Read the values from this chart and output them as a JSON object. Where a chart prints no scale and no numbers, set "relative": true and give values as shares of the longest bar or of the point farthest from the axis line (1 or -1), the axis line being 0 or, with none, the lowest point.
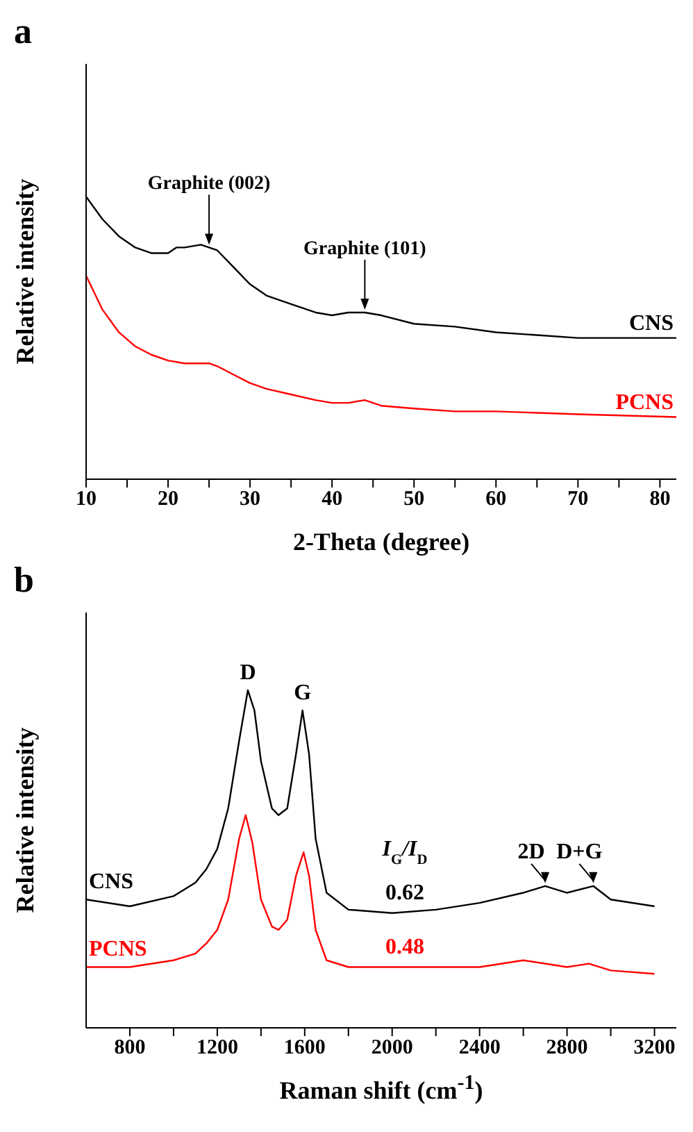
{
  "chart_data": [
    {
      "type": "line",
      "title": "a",
      "xlabel": "2-Theta (degree)",
      "ylabel": "Relative intensity",
      "relative": true,
      "tick_labels": "x",
      "xlim": [
        10,
        82
      ],
      "xticks": [
        10,
        {
          "value": 15,
          "label": null
        },
        20,
        {
          "value": 25,
          "label": null
        },
        30,
        {
          "value": 35,
          "label": null
        },
        40,
        {
          "value": 45,
          "label": null
        },
        50,
        {
          "value": 55,
          "label": null
        },
        60,
        {
          "value": 65,
          "label": null
        },
        70,
        {
          "value": 75,
          "label": null
        },
        80
      ],
      "marker": "none",
      "line_style": "solid",
      "series": [
        {
          "name": "CNS",
          "color": "#000000",
          "x": [
            10,
            12,
            14,
            16,
            18,
            20,
            21,
            22,
            24,
            25,
            26,
            28,
            30,
            32,
            35,
            38,
            40,
            42,
            44,
            46,
            50,
            55,
            60,
            65,
            70,
            75,
            80,
            82
          ],
          "values": [
            1,
            0.92,
            0.86,
            0.82,
            0.8,
            0.8,
            0.82,
            0.82,
            0.83,
            0.82,
            0.81,
            0.75,
            0.69,
            0.65,
            0.62,
            0.59,
            0.58,
            0.59,
            0.59,
            0.58,
            0.55,
            0.54,
            0.52,
            0.51,
            0.5,
            0.5,
            0.5,
            0.5
          ]
        },
        {
          "name": "PCNS",
          "color": "#ff0000",
          "x": [
            10,
            12,
            14,
            16,
            18,
            20,
            22,
            24,
            25,
            26,
            28,
            30,
            32,
            35,
            38,
            40,
            42,
            44,
            46,
            50,
            55,
            60,
            70,
            82
          ],
          "values": [
            0.72,
            0.6,
            0.52,
            0.47,
            0.44,
            0.42,
            0.41,
            0.41,
            0.41,
            0.4,
            0.37,
            0.34,
            0.32,
            0.3,
            0.28,
            0.27,
            0.27,
            0.28,
            0.26,
            0.25,
            0.24,
            0.24,
            0.23,
            0.22
          ]
        }
      ],
      "annotations": [
        {
          "text": "Graphite (002)",
          "x": 25,
          "y": 0.82
        },
        {
          "text": "Graphite (101)",
          "x": 44,
          "y": 0.59
        }
      ]
    },
    {
      "type": "line",
      "title": "b",
      "xlabel": "Raman shift (cm$^{-1}$)",
      "ylabel": "Relative intensity",
      "relative": true,
      "tick_labels": "x",
      "xlim": [
        600,
        3300
      ],
      "xticks": [
        800,
        {
          "value": 1000,
          "label": null
        },
        1200,
        {
          "value": 1400,
          "label": null
        },
        1600,
        {
          "value": 1800,
          "label": null
        },
        2000,
        {
          "value": 2200,
          "label": null
        },
        2400,
        {
          "value": 2600,
          "label": null
        },
        2800,
        {
          "value": 3000,
          "label": null
        },
        3200
      ],
      "marker": "none",
      "line_style": "solid",
      "series": [
        {
          "name": "CNS",
          "color": "#000000",
          "x": [
            600,
            800,
            1000,
            1100,
            1150,
            1200,
            1250,
            1300,
            1340,
            1370,
            1400,
            1450,
            1480,
            1520,
            1560,
            1590,
            1620,
            1650,
            1700,
            1800,
            2000,
            2200,
            2400,
            2600,
            2700,
            2800,
            2920,
            3000,
            3200
          ],
          "values": [
            0.38,
            0.36,
            0.39,
            0.43,
            0.47,
            0.53,
            0.65,
            0.85,
            1,
            0.94,
            0.79,
            0.65,
            0.63,
            0.65,
            0.81,
            0.94,
            0.81,
            0.56,
            0.4,
            0.35,
            0.34,
            0.35,
            0.37,
            0.4,
            0.42,
            0.4,
            0.42,
            0.38,
            0.36
          ]
        },
        {
          "name": "PCNS",
          "color": "#ff0000",
          "x": [
            600,
            800,
            1000,
            1100,
            1150,
            1200,
            1250,
            1300,
            1330,
            1360,
            1400,
            1450,
            1480,
            1520,
            1560,
            1595,
            1620,
            1650,
            1700,
            1800,
            2000,
            2200,
            2400,
            2600,
            2800,
            2900,
            3000,
            3200
          ],
          "values": [
            0.18,
            0.18,
            0.2,
            0.22,
            0.25,
            0.29,
            0.38,
            0.56,
            0.63,
            0.55,
            0.38,
            0.3,
            0.29,
            0.32,
            0.45,
            0.52,
            0.45,
            0.29,
            0.2,
            0.18,
            0.18,
            0.18,
            0.18,
            0.2,
            0.18,
            0.19,
            0.17,
            0.16
          ]
        }
      ],
      "annotations": [
        {
          "text": "D",
          "x": 1340,
          "y": 1
        },
        {
          "text": "G",
          "x": 1590,
          "y": 0.94
        },
        {
          "text": "2D",
          "x": 2700,
          "y": 0.42
        },
        {
          "text": "D+G",
          "x": 2920,
          "y": 0.42
        },
        "I$_{G}$/I$_{D}$",
        "0.62",
        "0.48"
      ]
    }
  ]
}
